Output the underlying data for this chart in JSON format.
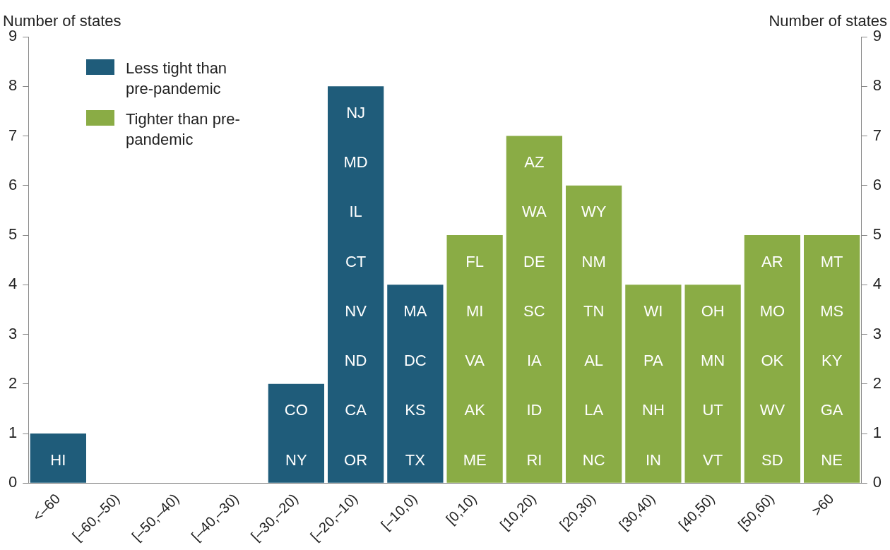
{
  "chart_data": {
    "type": "bar",
    "categories": [
      "<–60",
      "[–60,–50)",
      "[–50,–40)",
      "[–40,–30)",
      "[–30,–20)",
      "[–20,–10)",
      "[–10,0)",
      "[0,10)",
      "[10,20)",
      "[20,30)",
      "[30,40)",
      "[40,50)",
      "[50,60)",
      ">60"
    ],
    "series": [
      {
        "name": "Less tight than pre-pandemic",
        "color": "#1f5c7a",
        "values": [
          1,
          0,
          0,
          0,
          2,
          8,
          4,
          null,
          null,
          null,
          null,
          null,
          null,
          null
        ]
      },
      {
        "name": "Tighter than pre-pandemic",
        "color": "#8aac45",
        "values": [
          null,
          null,
          null,
          null,
          null,
          null,
          null,
          5,
          7,
          6,
          4,
          4,
          5,
          5
        ]
      }
    ],
    "ylabel": "Number of states",
    "y2label": "Number of states",
    "ylim": [
      0,
      9
    ],
    "yticks": [
      0,
      1,
      2,
      3,
      4,
      5,
      6,
      7,
      8,
      9
    ],
    "y2lim": [
      0,
      9
    ],
    "y2ticks": [
      0,
      1,
      2,
      3,
      4,
      5,
      6,
      7,
      8,
      9
    ],
    "grid": false,
    "legend": "top left",
    "annotations": [
      "HI",
      "NY",
      "CO",
      "OR",
      "CA",
      "ND",
      "NV",
      "CT",
      "IL",
      "MD",
      "NJ",
      "TX",
      "KS",
      "DC",
      "MA",
      "ME",
      "AK",
      "VA",
      "MI",
      "FL",
      "RI",
      "ID",
      "IA",
      "SC",
      "DE",
      "WA",
      "AZ",
      "NC",
      "LA",
      "AL",
      "TN",
      "NM",
      "WY",
      "IN",
      "NH",
      "PA",
      "WI",
      "VT",
      "UT",
      "MN",
      "OH",
      "SD",
      "WV",
      "OK",
      "MO",
      "AR",
      "NE",
      "GA",
      "KY",
      "MS",
      "MT"
    ]
  }
}
